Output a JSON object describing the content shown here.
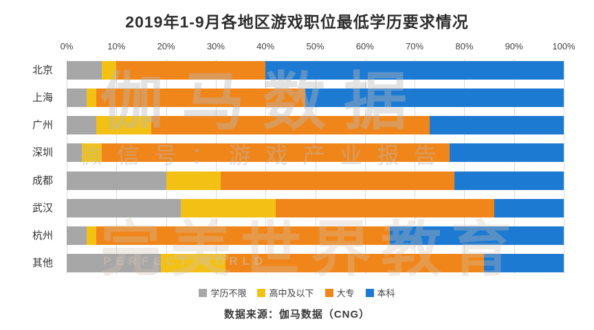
{
  "title": "2019年1-9月各地区游戏职位最低学历要求情况",
  "source": "数据来源：伽马数据（CNG）",
  "watermarks": {
    "brand": "伽马数据",
    "wechat": "微信号：游戏产业报告",
    "bottom": "完美世界教育",
    "latin": "PERFECT WORLD"
  },
  "chart_data": {
    "type": "bar",
    "orientation": "horizontal",
    "stacked": true,
    "title": "2019年1-9月各地区游戏职位最低学历要求情况",
    "categories": [
      "北京",
      "上海",
      "广州",
      "深圳",
      "成都",
      "武汉",
      "杭州",
      "其他"
    ],
    "x_ticks": [
      "0%",
      "10%",
      "20%",
      "30%",
      "40%",
      "50%",
      "60%",
      "70%",
      "80%",
      "90%",
      "100%"
    ],
    "xlim": [
      0,
      100
    ],
    "unit": "%",
    "grid": true,
    "legend_position": "bottom",
    "series": [
      {
        "name": "学历不限",
        "color": "#a7a7a7",
        "values": [
          7,
          4,
          6,
          3,
          20,
          23,
          4,
          19
        ]
      },
      {
        "name": "高中及以下",
        "color": "#f3c113",
        "values": [
          3,
          2,
          11,
          4,
          11,
          19,
          2,
          13
        ]
      },
      {
        "name": "大专",
        "color": "#f0861a",
        "values": [
          30,
          42,
          56,
          70,
          47,
          44,
          59,
          52
        ]
      },
      {
        "name": "本科",
        "color": "#1d7ad2",
        "values": [
          60,
          52,
          27,
          23,
          22,
          14,
          35,
          16
        ]
      }
    ]
  }
}
